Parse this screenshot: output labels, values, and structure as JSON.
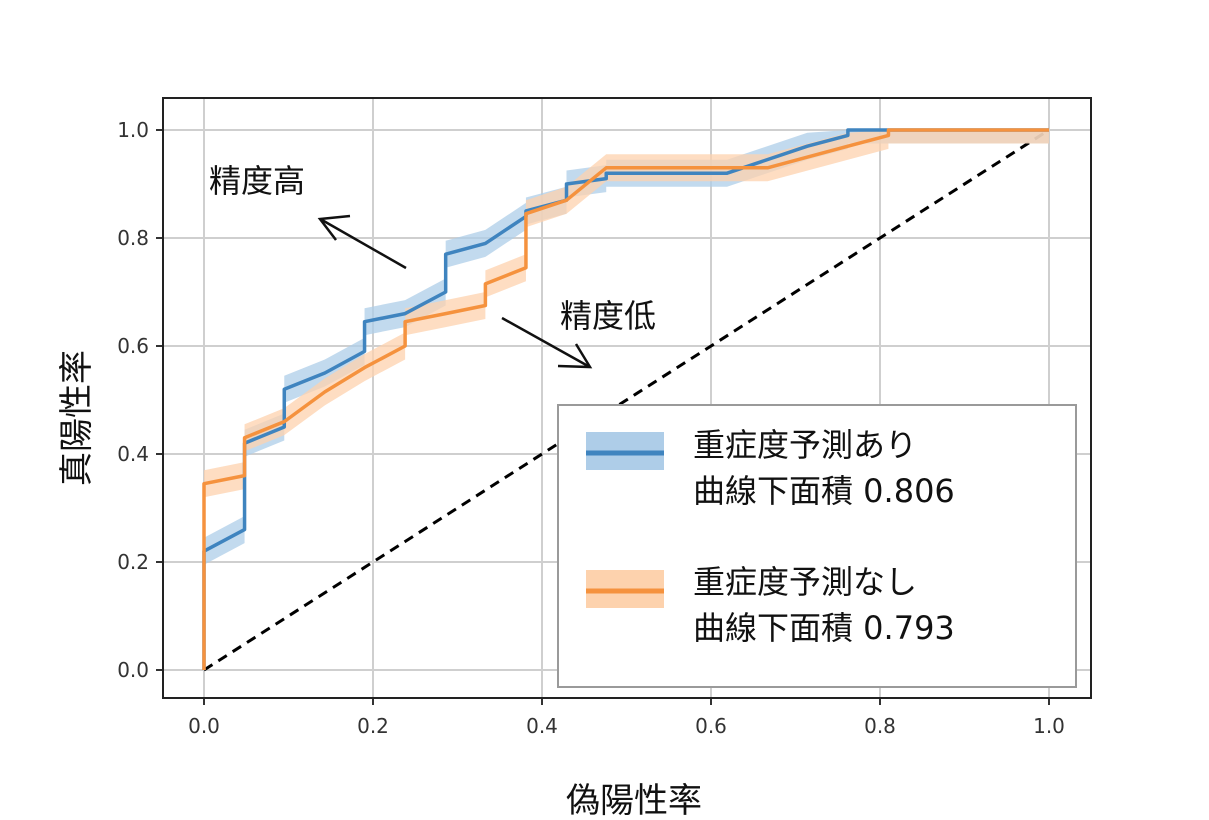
{
  "chart_data": {
    "type": "line",
    "xlabel": "偽陽性率",
    "ylabel": "真陽性率",
    "xlim": [
      -0.05,
      1.05
    ],
    "ylim": [
      -0.05,
      1.06
    ],
    "xticks": [
      0.0,
      0.2,
      0.4,
      0.6,
      0.8,
      1.0
    ],
    "yticks": [
      0.0,
      0.2,
      0.4,
      0.6,
      0.8,
      1.0
    ],
    "xtick_labels": [
      "0.0",
      "0.2",
      "0.4",
      "0.6",
      "0.8",
      "1.0"
    ],
    "ytick_labels": [
      "0.0",
      "0.2",
      "0.4",
      "0.6",
      "0.8",
      "1.0"
    ],
    "grid": true,
    "legend_position": "lower-right",
    "series": [
      {
        "legend_line1": "重症度予測あり",
        "legend_line2": "曲線下面積 0.806",
        "color": "#3f84bf",
        "band_color": "#aecde8",
        "x": [
          0.0,
          0.0,
          0.048,
          0.048,
          0.095,
          0.095,
          0.143,
          0.19,
          0.19,
          0.238,
          0.286,
          0.286,
          0.333,
          0.381,
          0.381,
          0.429,
          0.429,
          0.476,
          0.476,
          0.619,
          0.714,
          0.762,
          0.762,
          0.81,
          0.81,
          1.0
        ],
        "y": [
          0.0,
          0.22,
          0.26,
          0.42,
          0.45,
          0.52,
          0.55,
          0.59,
          0.645,
          0.66,
          0.7,
          0.77,
          0.79,
          0.84,
          0.85,
          0.87,
          0.9,
          0.91,
          0.92,
          0.92,
          0.97,
          0.99,
          1.0,
          1.0,
          1.0,
          1.0
        ],
        "band_halfwidth": 0.025
      },
      {
        "legend_line1": "重症度予測なし",
        "legend_line2": "曲線下面積 0.793",
        "color": "#f5923e",
        "band_color": "#fdd2ad",
        "x": [
          0.0,
          0.0,
          0.048,
          0.048,
          0.095,
          0.143,
          0.19,
          0.238,
          0.238,
          0.286,
          0.333,
          0.333,
          0.381,
          0.381,
          0.429,
          0.476,
          0.667,
          0.762,
          0.81,
          0.81,
          1.0
        ],
        "y": [
          0.0,
          0.345,
          0.36,
          0.43,
          0.46,
          0.515,
          0.56,
          0.6,
          0.645,
          0.66,
          0.675,
          0.715,
          0.745,
          0.845,
          0.87,
          0.93,
          0.93,
          0.97,
          0.99,
          1.0,
          1.0
        ],
        "band_halfwidth": 0.025
      }
    ],
    "reference_line": {
      "x": [
        0.0,
        1.0
      ],
      "y": [
        0.0,
        1.0
      ],
      "color": "#000000",
      "style": "dashed"
    },
    "annotations": [
      {
        "text": "精度高",
        "direction": "up-left"
      },
      {
        "text": "精度低",
        "direction": "down-right"
      }
    ]
  }
}
